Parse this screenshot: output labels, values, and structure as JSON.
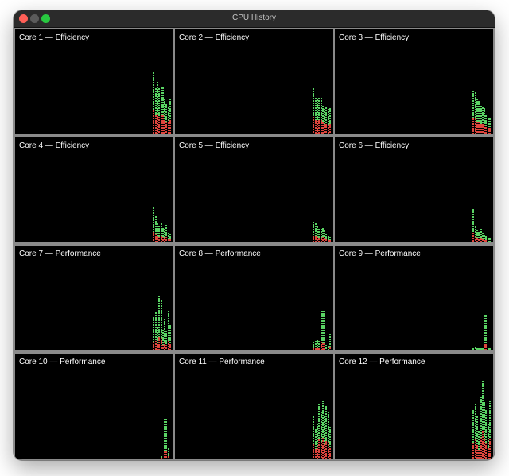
{
  "window": {
    "title": "CPU History",
    "controls": [
      "close-button",
      "minimize-button",
      "zoom-button"
    ]
  },
  "colors": {
    "user": "#5ad464",
    "system": "#e0453d",
    "background": "#000000",
    "divider": "#8a8a8a"
  },
  "cores": [
    {
      "label": "Core 1 — Efficiency",
      "total": [
        0.59,
        0.44,
        0.5,
        0.44,
        0.45,
        0.45,
        0.34,
        0.29,
        0.26,
        0.34
      ],
      "system": [
        0.23,
        0.18,
        0.2,
        0.17,
        0.18,
        0.18,
        0.14,
        0.12,
        0.11,
        0.14
      ]
    },
    {
      "label": "Core 2 — Efficiency",
      "total": [
        0.44,
        0.35,
        0.33,
        0.35,
        0.35,
        0.27,
        0.24,
        0.26,
        0.24,
        0.25
      ],
      "system": [
        0.17,
        0.14,
        0.13,
        0.14,
        0.14,
        0.11,
        0.1,
        0.1,
        0.09,
        0.1
      ]
    },
    {
      "label": "Core 3 — Efficiency",
      "total": [
        0.42,
        0.4,
        0.34,
        0.32,
        0.27,
        0.26,
        0.25,
        0.18,
        0.15,
        0.15
      ],
      "system": [
        0.15,
        0.15,
        0.12,
        0.12,
        0.1,
        0.1,
        0.09,
        0.07,
        0.06,
        0.06
      ]
    },
    {
      "label": "Core 4 — Efficiency",
      "total": [
        0.33,
        0.25,
        0.18,
        0.16,
        0.18,
        0.14,
        0.13,
        0.17,
        0.09,
        0.08
      ],
      "system": [
        0.1,
        0.08,
        0.06,
        0.05,
        0.06,
        0.05,
        0.04,
        0.05,
        0.03,
        0.03
      ]
    },
    {
      "label": "Core 5 — Efficiency",
      "total": [
        0.2,
        0.18,
        0.15,
        0.13,
        0.13,
        0.14,
        0.11,
        0.08,
        0.06,
        0.05
      ],
      "system": [
        0.06,
        0.06,
        0.05,
        0.04,
        0.04,
        0.05,
        0.04,
        0.03,
        0.02,
        0.02
      ]
    },
    {
      "label": "Core 6 — Efficiency",
      "total": [
        0.32,
        0.15,
        0.12,
        0.1,
        0.13,
        0.09,
        0.07,
        0.06,
        0.04,
        0.04
      ],
      "system": [
        0.09,
        0.05,
        0.04,
        0.03,
        0.04,
        0.03,
        0.02,
        0.02,
        0.01,
        0.01
      ]
    },
    {
      "label": "Core 7 — Performance",
      "total": [
        0.32,
        0.36,
        0.22,
        0.52,
        0.48,
        0.2,
        0.3,
        0.19,
        0.38,
        0.24
      ],
      "system": [
        0.08,
        0.09,
        0.06,
        0.13,
        0.12,
        0.05,
        0.08,
        0.05,
        0.09,
        0.06
      ]
    },
    {
      "label": "Core 8 — Performance",
      "total": [
        0.08,
        0.09,
        0.1,
        0.09,
        0.38,
        0.38,
        0.38,
        0.05,
        0.04,
        0.16
      ],
      "system": [
        0.02,
        0.02,
        0.02,
        0.02,
        0.08,
        0.07,
        0.07,
        0.01,
        0.01,
        0.03
      ]
    },
    {
      "label": "Core 9 — Performance",
      "total": [
        0.02,
        0.03,
        0.02,
        0.02,
        0.02,
        0.02,
        0.33,
        0.33,
        0.02,
        0.02
      ],
      "system": [
        0.01,
        0.01,
        0.01,
        0.01,
        0.01,
        0.01,
        0.06,
        0.06,
        0.0,
        0.0
      ]
    },
    {
      "label": "Core 10 — Performance",
      "total": [
        0.0,
        0.0,
        0.0,
        0.0,
        0.02,
        0.0,
        0.38,
        0.38,
        0.1,
        0.0
      ],
      "system": [
        0.0,
        0.0,
        0.0,
        0.0,
        0.01,
        0.0,
        0.07,
        0.07,
        0.02,
        0.0
      ]
    },
    {
      "label": "Core 11 — Performance",
      "total": [
        0.4,
        0.28,
        0.33,
        0.52,
        0.45,
        0.55,
        0.4,
        0.5,
        0.45,
        0.3
      ],
      "system": [
        0.14,
        0.09,
        0.12,
        0.18,
        0.16,
        0.2,
        0.14,
        0.17,
        0.16,
        0.1
      ]
    },
    {
      "label": "Core 12 — Performance",
      "total": [
        0.46,
        0.52,
        0.4,
        0.26,
        0.59,
        0.74,
        0.54,
        0.46,
        0.33,
        0.55
      ],
      "system": [
        0.15,
        0.18,
        0.13,
        0.08,
        0.2,
        0.26,
        0.18,
        0.15,
        0.1,
        0.19
      ]
    }
  ]
}
